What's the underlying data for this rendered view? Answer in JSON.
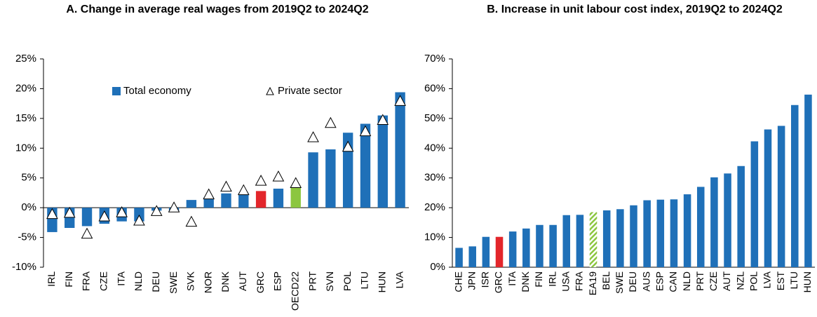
{
  "chart_data": [
    {
      "type": "bar",
      "title": "A. Change in average real wages from 2019Q2 to 2024Q2",
      "categories": [
        "IRL",
        "FIN",
        "FRA",
        "CZE",
        "ITA",
        "NLD",
        "DEU",
        "SWE",
        "SVK",
        "NOR",
        "DNK",
        "AUT",
        "GRC",
        "ESP",
        "OECD22",
        "PRT",
        "SVN",
        "POL",
        "LTU",
        "HUN",
        "LVA"
      ],
      "series": [
        {
          "name": "Total economy",
          "color": "#1f70b8",
          "values": [
            -4.1,
            -3.4,
            -3.1,
            -2.7,
            -2.3,
            -2.3,
            -0.5,
            -0.7,
            1.3,
            1.8,
            2.4,
            2.5,
            2.8,
            3.2,
            3.7,
            9.3,
            9.8,
            12.6,
            14.1,
            15.5,
            19.4
          ],
          "point_colors": {
            "12": "#e3262b",
            "14": "#8cc63f"
          }
        },
        {
          "name": "Private sector",
          "color": "#ffffff",
          "marker": "triangle",
          "values": [
            -1.0,
            -0.8,
            -4.3,
            -1.4,
            -0.7,
            -2.1,
            -0.5,
            0.1,
            -2.3,
            2.3,
            3.6,
            3.0,
            4.6,
            5.3,
            4.2,
            11.9,
            14.3,
            10.3,
            12.9,
            14.8,
            18.0
          ]
        }
      ],
      "ylim": [
        -10,
        25
      ],
      "yticks": [
        {
          "value": -10,
          "label": "-10%"
        },
        {
          "value": -5,
          "label": "-5%"
        },
        {
          "value": 0,
          "label": "0%"
        },
        {
          "value": 5,
          "label": "5%"
        },
        {
          "value": 10,
          "label": "10%"
        },
        {
          "value": 15,
          "label": "15%"
        },
        {
          "value": 20,
          "label": "20%"
        },
        {
          "value": 25,
          "label": "25%"
        }
      ],
      "legend": "top",
      "grid": false
    },
    {
      "type": "bar",
      "title": "B. Increase in unit labour cost index, 2019Q2 to 2024Q2",
      "categories": [
        "CHE",
        "JPN",
        "ISR",
        "GRC",
        "ITA",
        "DNK",
        "FIN",
        "IRL",
        "USA",
        "FRA",
        "EA19",
        "BEL",
        "SWE",
        "DEU",
        "AUS",
        "ESP",
        "CAN",
        "NLD",
        "PRT",
        "CZE",
        "AUT",
        "NZL",
        "POL",
        "LVA",
        "EST",
        "LTU",
        "HUN"
      ],
      "series": [
        {
          "color": "#1f70b8",
          "values": [
            6.5,
            7,
            10.2,
            10.2,
            12,
            13,
            14.2,
            14.2,
            17.5,
            17.6,
            18.5,
            19.1,
            19.5,
            20.8,
            22.5,
            22.7,
            22.8,
            24.5,
            27,
            30.2,
            31.5,
            34,
            42.3,
            46.3,
            47.5,
            54.5,
            58
          ],
          "point_colors": {
            "3": "#e3262b",
            "10": "#8cc63f"
          },
          "hatched_points": [
            10
          ]
        }
      ],
      "ylim": [
        0,
        70
      ],
      "yticks": [
        {
          "value": 0,
          "label": "0%"
        },
        {
          "value": 10,
          "label": "10%"
        },
        {
          "value": 20,
          "label": "20%"
        },
        {
          "value": 30,
          "label": "30%"
        },
        {
          "value": 40,
          "label": "40%"
        },
        {
          "value": 50,
          "label": "50%"
        },
        {
          "value": 60,
          "label": "60%"
        },
        {
          "value": 70,
          "label": "70%"
        }
      ],
      "grid": false
    }
  ]
}
